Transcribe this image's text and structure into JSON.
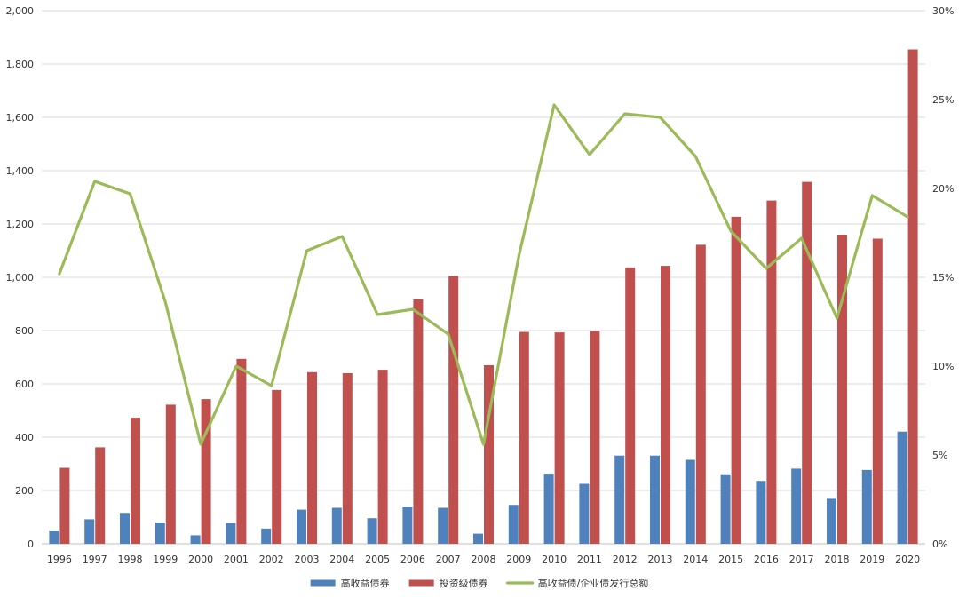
{
  "chart_data": {
    "type": "bar",
    "categories": [
      "1996",
      "1997",
      "1998",
      "1999",
      "2000",
      "2001",
      "2002",
      "2003",
      "2004",
      "2005",
      "2006",
      "2007",
      "2008",
      "2009",
      "2010",
      "2011",
      "2012",
      "2013",
      "2014",
      "2015",
      "2016",
      "2017",
      "2018",
      "2019",
      "2020"
    ],
    "series": [
      {
        "name": "高收益债券",
        "type": "bar",
        "axis": "left",
        "color": "#4f81bd",
        "values": [
          50,
          92,
          116,
          80,
          32,
          78,
          57,
          128,
          135,
          96,
          140,
          135,
          38,
          146,
          263,
          225,
          331,
          331,
          315,
          261,
          236,
          282,
          172,
          277,
          421
        ]
      },
      {
        "name": "投资级债券",
        "type": "bar",
        "axis": "left",
        "color": "#c0504d",
        "values": [
          285,
          362,
          473,
          522,
          543,
          694,
          577,
          644,
          640,
          653,
          918,
          1005,
          670,
          795,
          793,
          798,
          1037,
          1043,
          1122,
          1227,
          1288,
          1358,
          1160,
          1145,
          1855
        ]
      },
      {
        "name": "高收益债/企业债发行总额",
        "type": "line",
        "axis": "right",
        "color": "#9bbb59",
        "values": [
          0.152,
          0.204,
          0.197,
          0.136,
          0.056,
          0.1,
          0.089,
          0.165,
          0.173,
          0.129,
          0.132,
          0.118,
          0.056,
          0.162,
          0.247,
          0.219,
          0.242,
          0.24,
          0.218,
          0.176,
          0.155,
          0.172,
          0.127,
          0.196,
          0.184
        ]
      }
    ],
    "y_left": {
      "ylim": [
        0,
        2000
      ],
      "ticks": [
        0,
        200,
        400,
        600,
        800,
        1000,
        1200,
        1400,
        1600,
        1800,
        2000
      ],
      "tick_labels": [
        "0",
        "200",
        "400",
        "600",
        "800",
        "1,000",
        "1,200",
        "1,400",
        "1,600",
        "1,800",
        "2,000"
      ]
    },
    "y_right": {
      "ylim": [
        0,
        0.3
      ],
      "ticks": [
        0,
        0.05,
        0.1,
        0.15,
        0.2,
        0.25,
        0.3
      ],
      "tick_labels": [
        "0%",
        "5%",
        "10%",
        "15%",
        "20%",
        "25%",
        "30%"
      ]
    },
    "grid": true,
    "legend": "bottom"
  }
}
